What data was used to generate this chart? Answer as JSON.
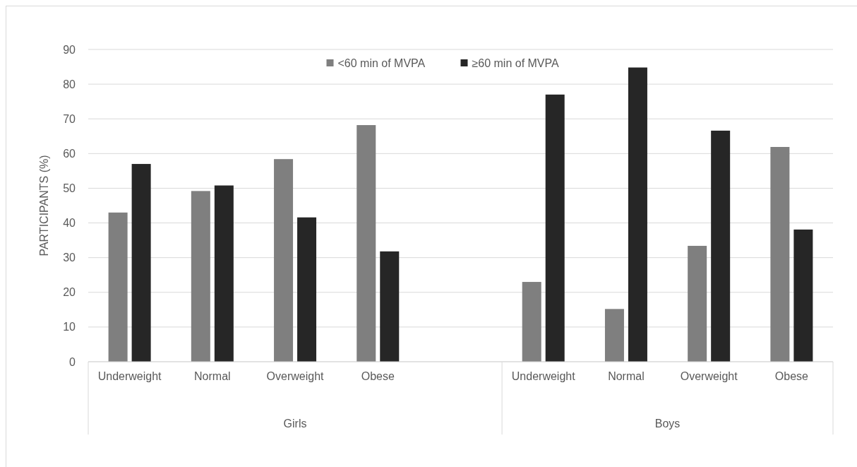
{
  "chart_data": {
    "type": "bar",
    "ylabel": "PARTICIPANTS (%)",
    "categories": [
      "Underweight",
      "Normal",
      "Overweight",
      "Obese",
      null,
      "Underweight",
      "Normal",
      "Overweight",
      "Obese"
    ],
    "series": [
      {
        "name": "<60 min of MVPA",
        "color": "#7f7f7f",
        "values": [
          43,
          49.2,
          58.4,
          68.2,
          null,
          23,
          15.2,
          33.4,
          61.9
        ]
      },
      {
        "name": "≥60 min of MVPA",
        "color": "#262626",
        "values": [
          57,
          50.8,
          41.6,
          31.8,
          null,
          77,
          84.8,
          66.6,
          38.1
        ]
      }
    ],
    "annotations": [
      "Girls",
      "Boys"
    ],
    "ylim": [
      0,
      90
    ],
    "yticks": [
      0,
      10,
      20,
      30,
      40,
      50,
      60,
      70,
      80,
      90
    ],
    "grid": "y",
    "legend": "top"
  }
}
